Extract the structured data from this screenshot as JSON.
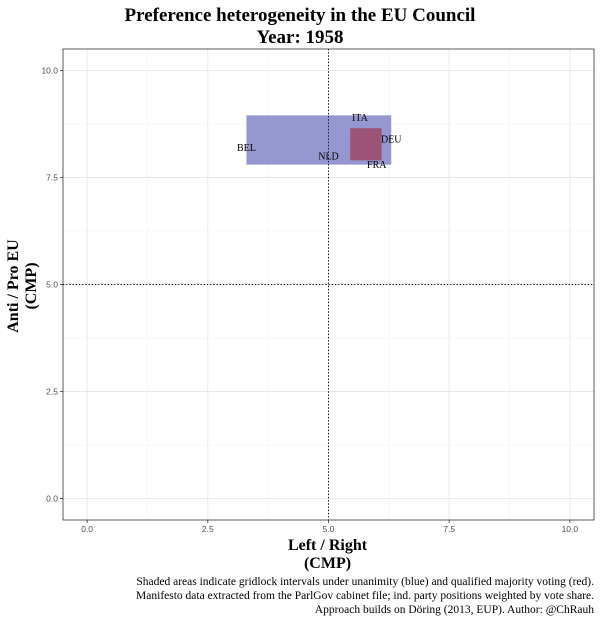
{
  "chart_data": {
    "type": "scatter",
    "title": "Preference heterogeneity in the EU Council",
    "subtitle": "Year: 1958",
    "xlabel": [
      "Left / Right",
      "(CMP)"
    ],
    "ylabel": [
      "Anti / Pro EU",
      "(CMP)"
    ],
    "xlim": [
      -0.5,
      10.5
    ],
    "ylim": [
      -0.5,
      10.5
    ],
    "xticks": [
      0.0,
      2.5,
      5.0,
      7.5,
      10.0
    ],
    "yticks": [
      0.0,
      2.5,
      5.0,
      7.5,
      10.0
    ],
    "xtick_labels": [
      "0.0",
      "2.5",
      "5.0",
      "7.5",
      "10.0"
    ],
    "ytick_labels": [
      "0.0",
      "2.5",
      "5.0",
      "7.5",
      "10.0"
    ],
    "grid": true,
    "reference_lines": {
      "x": 5.0,
      "y": 5.0
    },
    "unanimity_interval": {
      "x": [
        3.3,
        6.3
      ],
      "y": [
        7.8,
        8.95
      ],
      "color": "#8b8bcb"
    },
    "qmv_interval": {
      "x": [
        5.45,
        6.1
      ],
      "y": [
        7.9,
        8.65
      ],
      "color": "#9b4d6a"
    },
    "countries": [
      {
        "label": "BEL",
        "x": 3.3,
        "y": 8.2
      },
      {
        "label": "ITA",
        "x": 5.65,
        "y": 8.9
      },
      {
        "label": "DEU",
        "x": 6.3,
        "y": 8.4
      },
      {
        "label": "NLD",
        "x": 5.0,
        "y": 8.0
      },
      {
        "label": "FRA",
        "x": 6.0,
        "y": 7.8
      }
    ],
    "caption": [
      "Shaded areas indicate gridlock intervals under unanimity (blue) and qualified majority voting (red).",
      "Manifesto data extracted from the ParlGov cabinet file; ind. party positions weighted by vote share.",
      "Approach builds on Döring (2013, EUP). Author: @ChRauh"
    ]
  }
}
